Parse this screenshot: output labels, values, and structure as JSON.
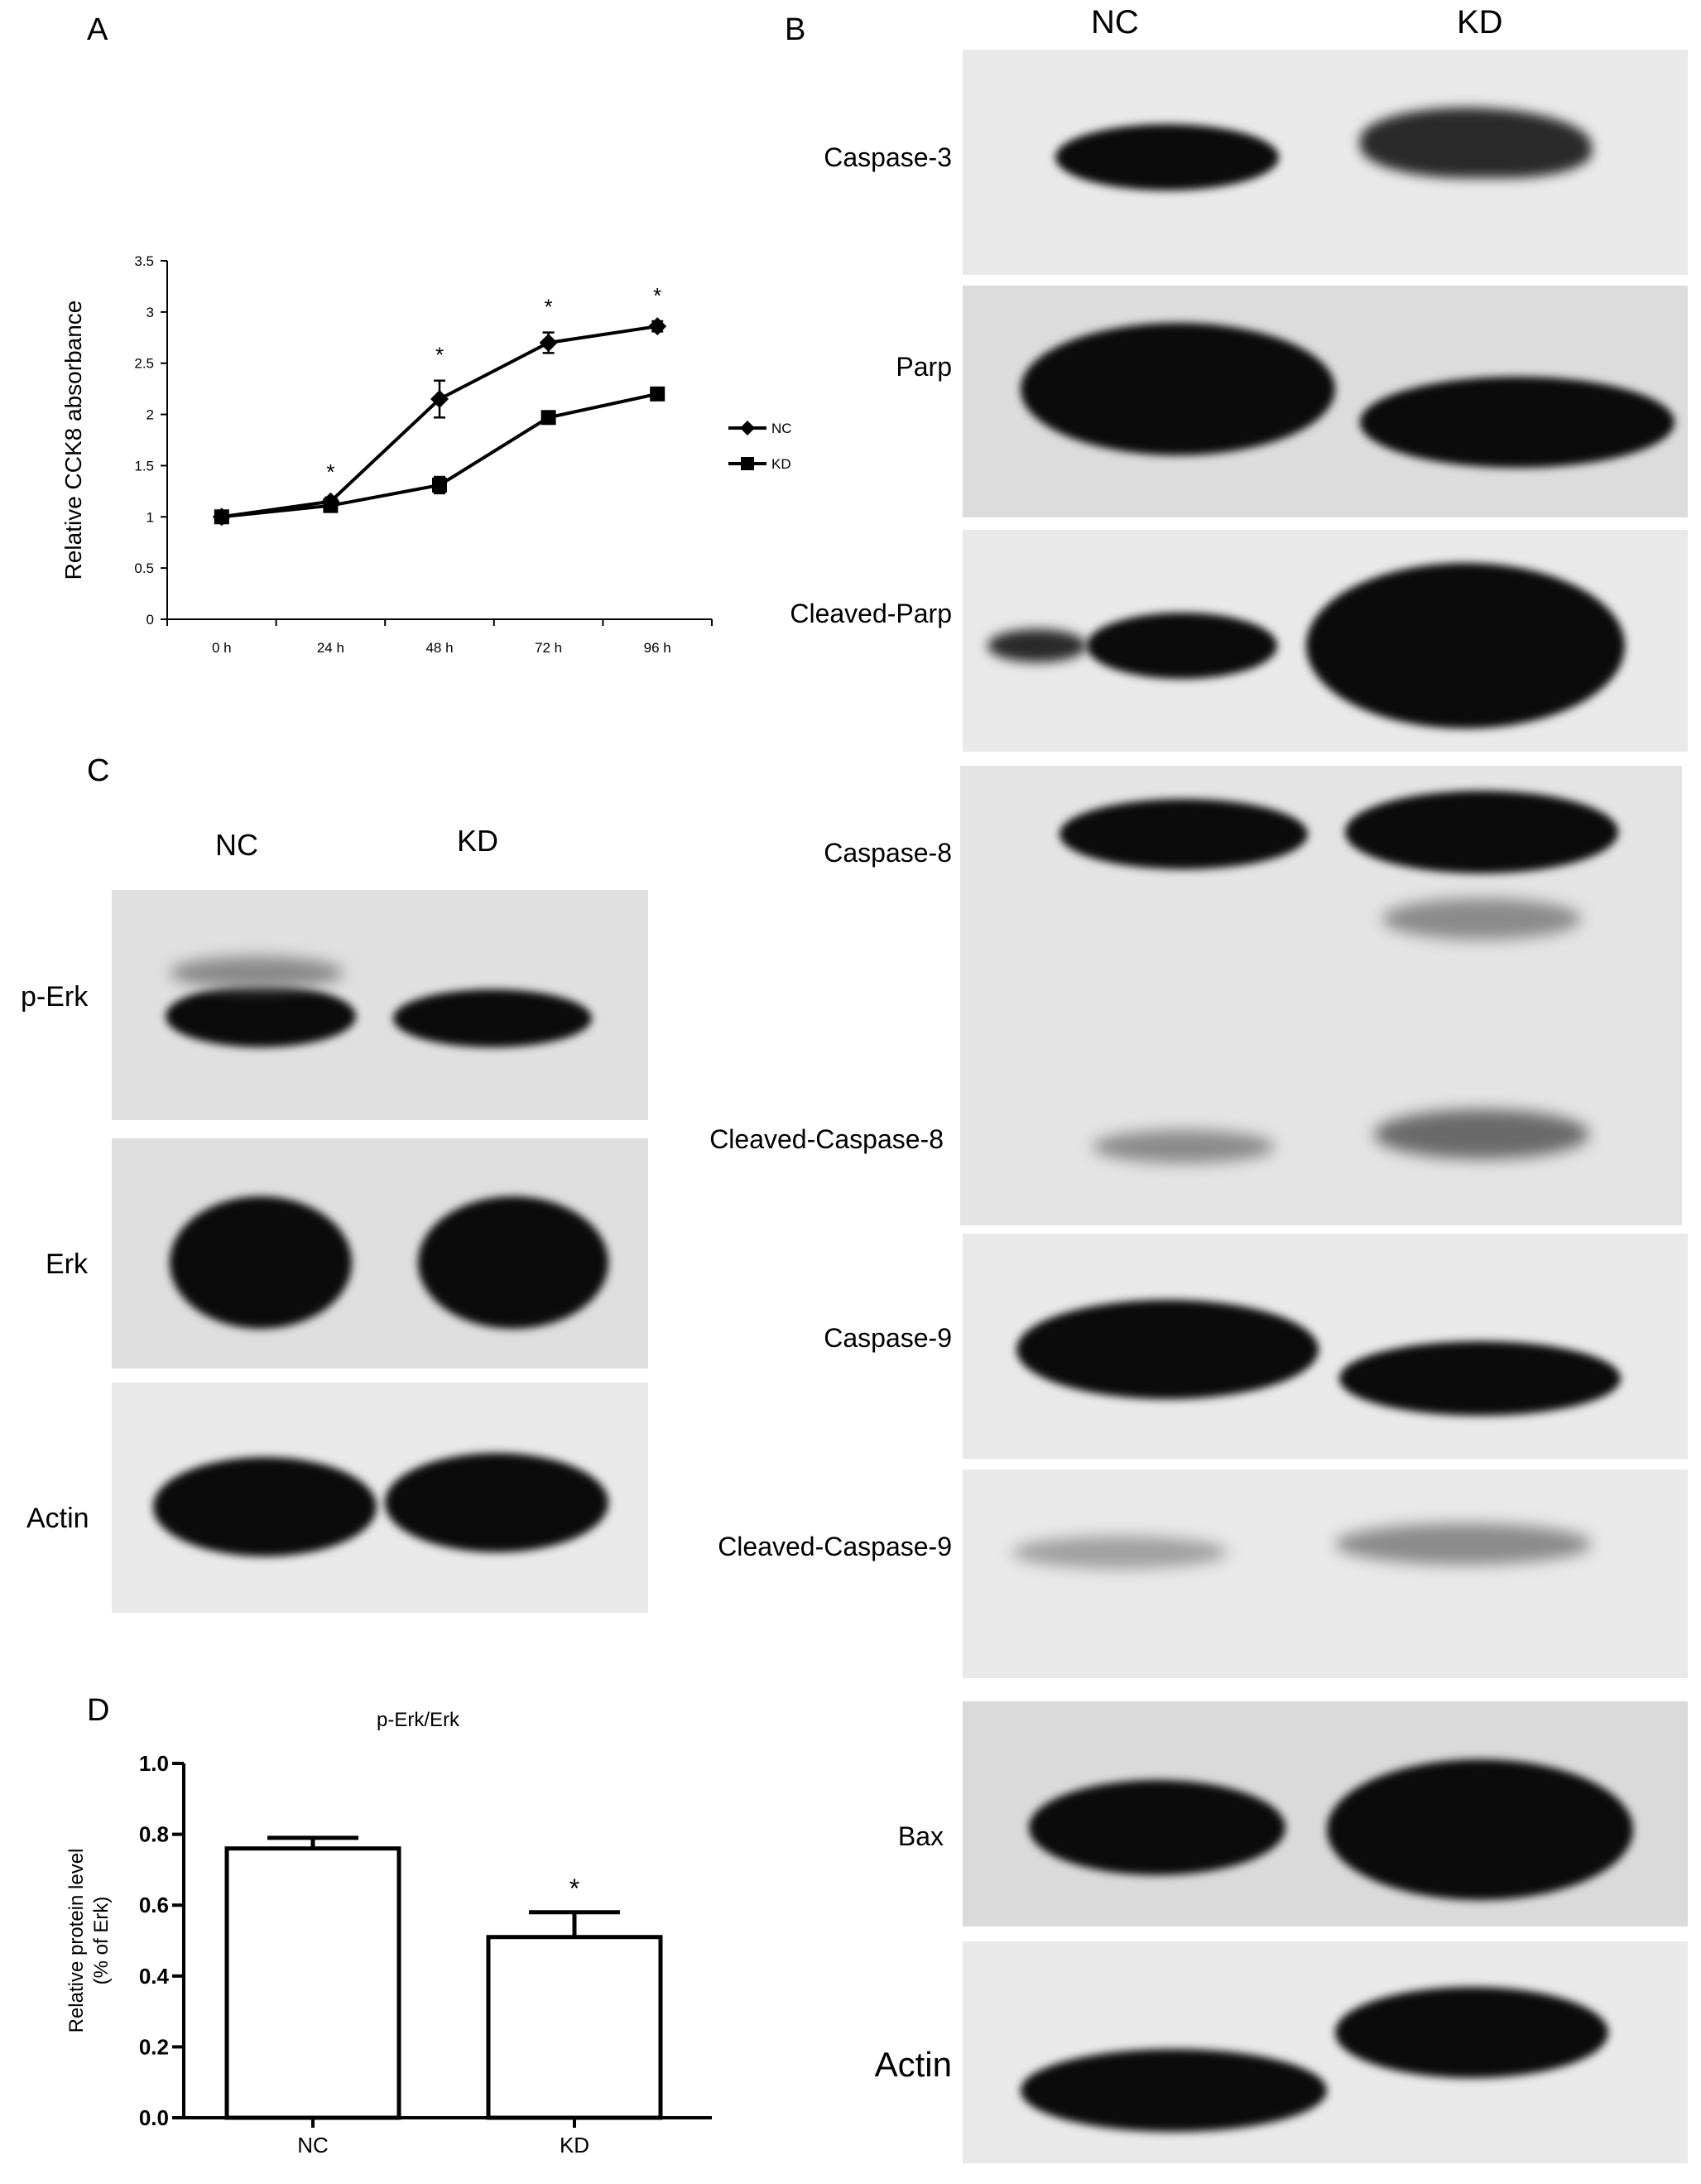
{
  "panels": {
    "a": {
      "letter": "A"
    },
    "b": {
      "letter": "B",
      "lanes": [
        "NC",
        "KD"
      ],
      "blots": [
        "Caspase-3",
        "Parp",
        "Cleaved-Parp",
        "Caspase-8",
        "Cleaved-Caspase-8",
        "Caspase-9",
        "Cleaved-Caspase-9",
        "Bax",
        "Actin"
      ]
    },
    "c": {
      "letter": "C",
      "lanes": [
        "NC",
        "KD"
      ],
      "blots": [
        "p-Erk",
        "Erk",
        "Actin"
      ]
    },
    "d": {
      "letter": "D"
    }
  },
  "chart_data": [
    {
      "type": "line",
      "panel": "A",
      "title": "",
      "xlabel": "",
      "ylabel": "Relative CCK8 absorbance",
      "categories": [
        "0 h",
        "24 h",
        "48 h",
        "72 h",
        "96 h"
      ],
      "ylim": [
        0,
        3.5
      ],
      "yticks": [
        "0",
        "0.5",
        "1",
        "1.5",
        "2",
        "2.5",
        "3",
        "3.5"
      ],
      "series": [
        {
          "name": "NC",
          "marker": "diamond",
          "values": [
            1.0,
            1.15,
            2.15,
            2.7,
            2.86
          ],
          "errors": [
            0.02,
            0.04,
            0.18,
            0.1,
            0.05
          ]
        },
        {
          "name": "KD",
          "marker": "square",
          "values": [
            1.0,
            1.11,
            1.31,
            1.97,
            2.2
          ],
          "errors": [
            0.02,
            0.03,
            0.08,
            0.03,
            0.03
          ]
        }
      ],
      "significance": [
        "",
        "*",
        "*",
        "*",
        "*"
      ],
      "legend": "right",
      "grid": false
    },
    {
      "type": "bar",
      "panel": "D",
      "title": "p-Erk/Erk",
      "xlabel": "",
      "ylabel": "Relative protein level",
      "ylabel2": "(% of Erk)",
      "categories": [
        "NC",
        "KD"
      ],
      "values": [
        0.76,
        0.51
      ],
      "errors": [
        0.03,
        0.07
      ],
      "significance": [
        "",
        "*"
      ],
      "ylim": [
        0,
        1.0
      ],
      "yticks": [
        "0.0",
        "0.2",
        "0.4",
        "0.6",
        "0.8",
        "1.0"
      ],
      "grid": false
    }
  ]
}
